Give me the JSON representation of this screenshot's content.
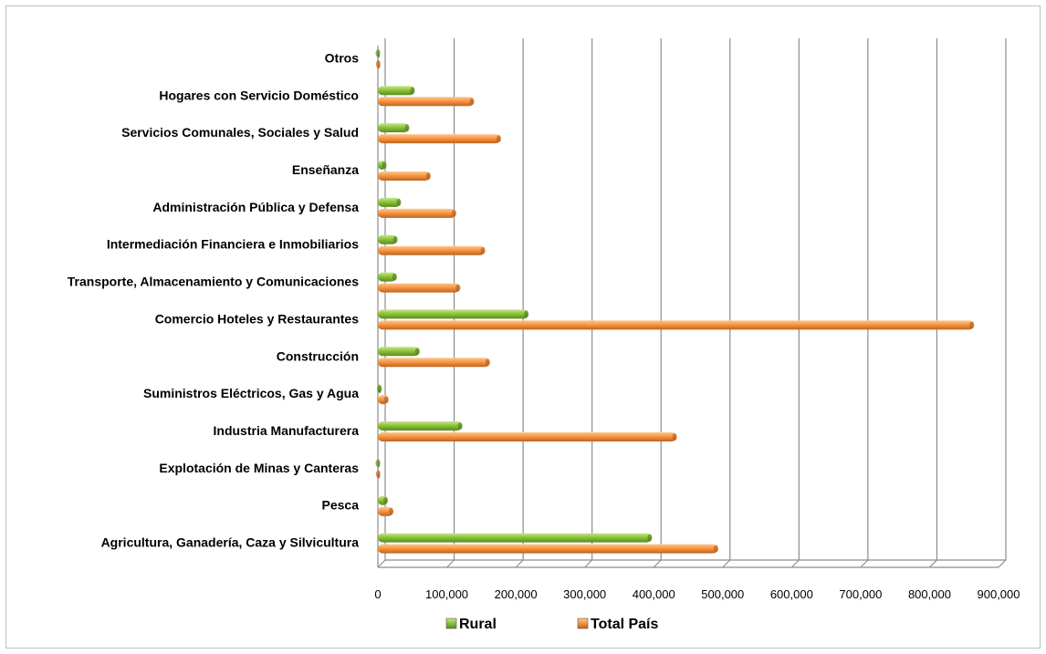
{
  "chart_data": {
    "type": "bar",
    "orientation": "horizontal",
    "categories": [
      "Agricultura, Ganadería, Caza y Silvicultura",
      "Pesca",
      "Explotación de Minas y Canteras",
      "Industria Manufacturera",
      "Suministros Eléctricos, Gas y Agua",
      "Construcción",
      "Comercio Hoteles y Restaurantes",
      "Transporte, Almacenamiento y Comunicaciones",
      "Intermediación Financiera e Inmobiliarios",
      "Administración Pública y Defensa",
      "Enseñanza",
      "Servicios Comunales, Sociales y Salud",
      "Hogares con Servicio Doméstico",
      "Otros"
    ],
    "series": [
      {
        "name": "Rural",
        "color": "#8cc43c",
        "values": [
          397000,
          14000,
          2000,
          122000,
          5000,
          60000,
          218000,
          27000,
          28000,
          33000,
          12000,
          45000,
          53000,
          2000
        ]
      },
      {
        "name": "Total País",
        "color": "#f79646",
        "values": [
          493000,
          22000,
          3000,
          433000,
          15000,
          162000,
          864000,
          119000,
          155000,
          113000,
          76000,
          178000,
          139000,
          3000
        ]
      }
    ],
    "xlim": [
      0,
      900000
    ],
    "xticks": [
      "0",
      "100,000",
      "200,000",
      "300,000",
      "400,000",
      "500,000",
      "600,000",
      "700,000",
      "800,000",
      "900,000"
    ],
    "grid": true,
    "legend_position": "bottom",
    "title": "",
    "xlabel": "",
    "ylabel": ""
  }
}
